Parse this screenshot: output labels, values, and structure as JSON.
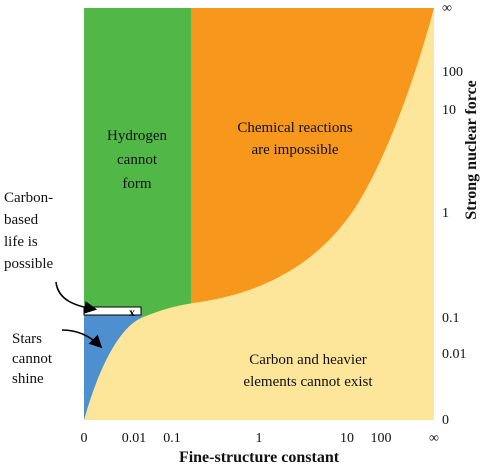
{
  "regions": {
    "hydrogen": [
      "Hydrogen",
      "cannot",
      "form"
    ],
    "chemical": [
      "Chemical reactions",
      "are impossible"
    ],
    "carbon": [
      "Carbon and heavier",
      "elements cannot exist"
    ],
    "stars": [
      "Stars",
      "cannot",
      "shine"
    ]
  },
  "annotation": [
    "Carbon-",
    "based",
    "life is",
    "possible"
  ],
  "marker": "x",
  "x_axis": {
    "title": "Fine-structure constant",
    "ticks": [
      "0",
      "0.01",
      "0.1",
      "1",
      "10",
      "100",
      "∞"
    ]
  },
  "y_axis": {
    "title": "Strong nuclear force",
    "ticks": [
      "∞",
      "100",
      "10",
      "1",
      "0.1",
      "0.01",
      "0"
    ]
  }
}
